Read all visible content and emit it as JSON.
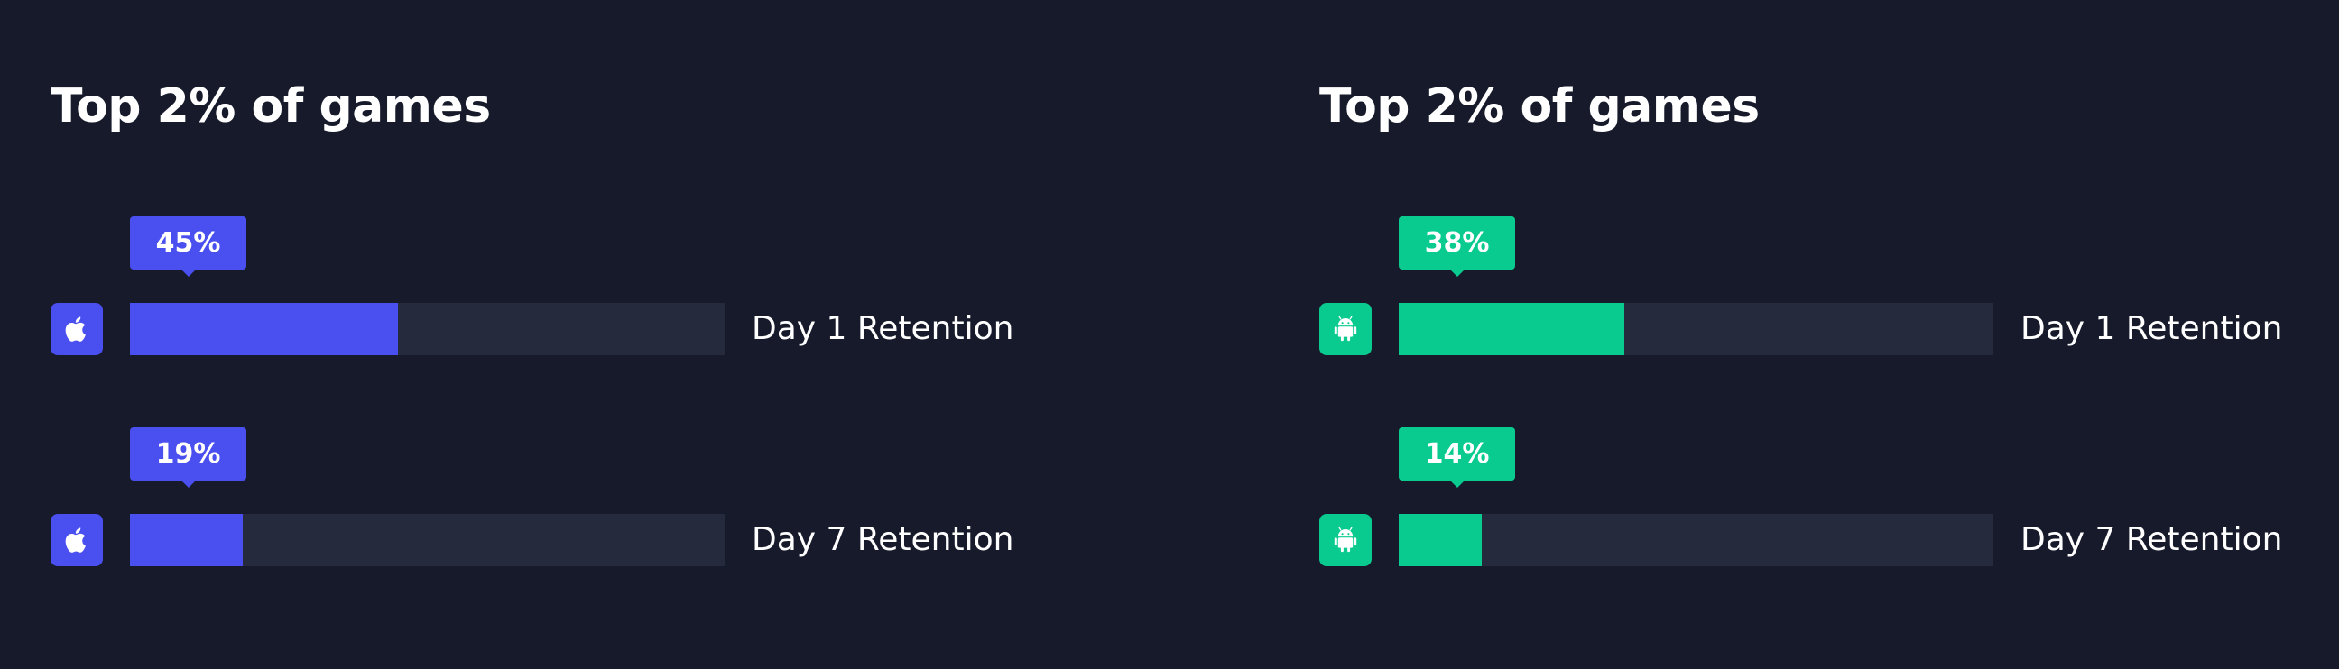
{
  "colors": {
    "background": "#161a2a",
    "track": "#262a3d",
    "ios_accent": "#4a4ff0",
    "android_accent": "#0acb8f"
  },
  "panels": [
    {
      "title": "Top 2% of games",
      "platform_icon": "apple-icon",
      "accent": "#4a4ff0",
      "rows": [
        {
          "badge": "45%",
          "value": 45,
          "label": "Day 1 Retention"
        },
        {
          "badge": "19%",
          "value": 19,
          "label": "Day 7 Retention"
        }
      ]
    },
    {
      "title": "Top 2% of games",
      "platform_icon": "android-icon",
      "accent": "#0acb8f",
      "rows": [
        {
          "badge": "38%",
          "value": 38,
          "label": "Day 1 Retention"
        },
        {
          "badge": "14%",
          "value": 14,
          "label": "Day 7 Retention"
        }
      ]
    }
  ],
  "chart_data": [
    {
      "type": "bar",
      "title": "Top 2% of games",
      "categories": [
        "Day 1 Retention",
        "Day 7 Retention"
      ],
      "values": [
        45,
        19
      ],
      "data_labels": [
        "45%",
        "19%"
      ],
      "ylim": [
        0,
        100
      ],
      "orientation": "horizontal",
      "legend": "none",
      "platform_icon": "apple-icon",
      "color": "#4a4ff0"
    },
    {
      "type": "bar",
      "title": "Top 2% of games",
      "categories": [
        "Day 1 Retention",
        "Day 7 Retention"
      ],
      "values": [
        38,
        14
      ],
      "data_labels": [
        "38%",
        "14%"
      ],
      "ylim": [
        0,
        100
      ],
      "orientation": "horizontal",
      "legend": "none",
      "platform_icon": "android-icon",
      "color": "#0acb8f"
    }
  ]
}
